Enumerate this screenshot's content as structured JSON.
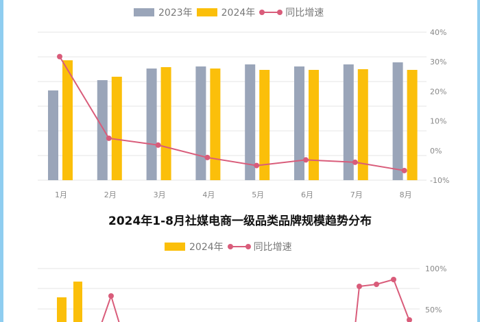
{
  "chart_data": [
    {
      "type": "bar",
      "title": "",
      "categories": [
        "1月",
        "2月",
        "3月",
        "4月",
        "5月",
        "6月",
        "7月",
        "8月"
      ],
      "series": [
        {
          "name": "2023年",
          "type": "bar",
          "color": "#9aa5b9",
          "values": [
            131,
            146,
            163,
            166,
            169,
            166,
            169,
            172
          ]
        },
        {
          "name": "2024年",
          "type": "bar",
          "color": "#fbbf0a",
          "values": [
            175,
            151,
            165,
            163,
            161,
            161,
            162,
            161
          ]
        },
        {
          "name": "同比增速",
          "type": "line",
          "axis": "right",
          "color": "#d95c7a",
          "values": [
            31.8,
            4.2,
            1.9,
            -2.3,
            -5.0,
            -3.1,
            -3.9,
            -6.7
          ]
        }
      ],
      "left_axis": {
        "labels_shown": false,
        "note": "bar values are relative heights (no visible axis labels)"
      },
      "right_axis": {
        "ticks": [
          "40%",
          "30%",
          "20%",
          "10%",
          "0%",
          "-10%"
        ],
        "ylim": [
          -10,
          40
        ]
      },
      "legend": [
        "2023年",
        "2024年",
        "同比增速"
      ],
      "legend_position": "top",
      "grid": true
    },
    {
      "type": "bar",
      "title": "2024年1-8月社媒电商一级品类品牌规模趋势分布",
      "legend": [
        "2024年",
        "同比增速"
      ],
      "legend_position": "top",
      "series": [
        {
          "name": "2024年",
          "type": "bar",
          "color": "#fbbf0a",
          "values_visible_partial": [
            36,
            58
          ]
        },
        {
          "name": "同比增速",
          "type": "line",
          "axis": "right",
          "color": "#d95c7a",
          "points_visible_partial": [
            {
              "x_index": 3,
              "value": 67
            },
            {
              "x_index": 18,
              "value": 78
            },
            {
              "x_index": 19,
              "value": 81
            },
            {
              "x_index": 20,
              "value": 86
            },
            {
              "x_index": 21,
              "value": 36
            }
          ]
        }
      ],
      "right_axis": {
        "ticks_visible": [
          "100%",
          "50%"
        ]
      },
      "grid": true,
      "note": "chart cut off at bottom of screenshot"
    }
  ],
  "chart1": {
    "legend": {
      "s1": "2023年",
      "s2": "2024年",
      "s3": "同比增速"
    },
    "x_labels": [
      "1月",
      "2月",
      "3月",
      "4月",
      "5月",
      "6月",
      "7月",
      "8月"
    ],
    "y_right_labels": [
      "40%",
      "30%",
      "20%",
      "10%",
      "0%",
      "-10%"
    ]
  },
  "chart2": {
    "title": "2024年1-8月社媒电商一级品类品牌规模趋势分布",
    "legend": {
      "s1": "2024年",
      "s2": "同比增速"
    },
    "y_right_labels": [
      "100%",
      "50%"
    ]
  },
  "colors": {
    "gray": "#9aa5b9",
    "yellow": "#fbbf0a",
    "line": "#d95c7a",
    "grid": "#e6e6e6",
    "frame": "#8fcdf0"
  }
}
